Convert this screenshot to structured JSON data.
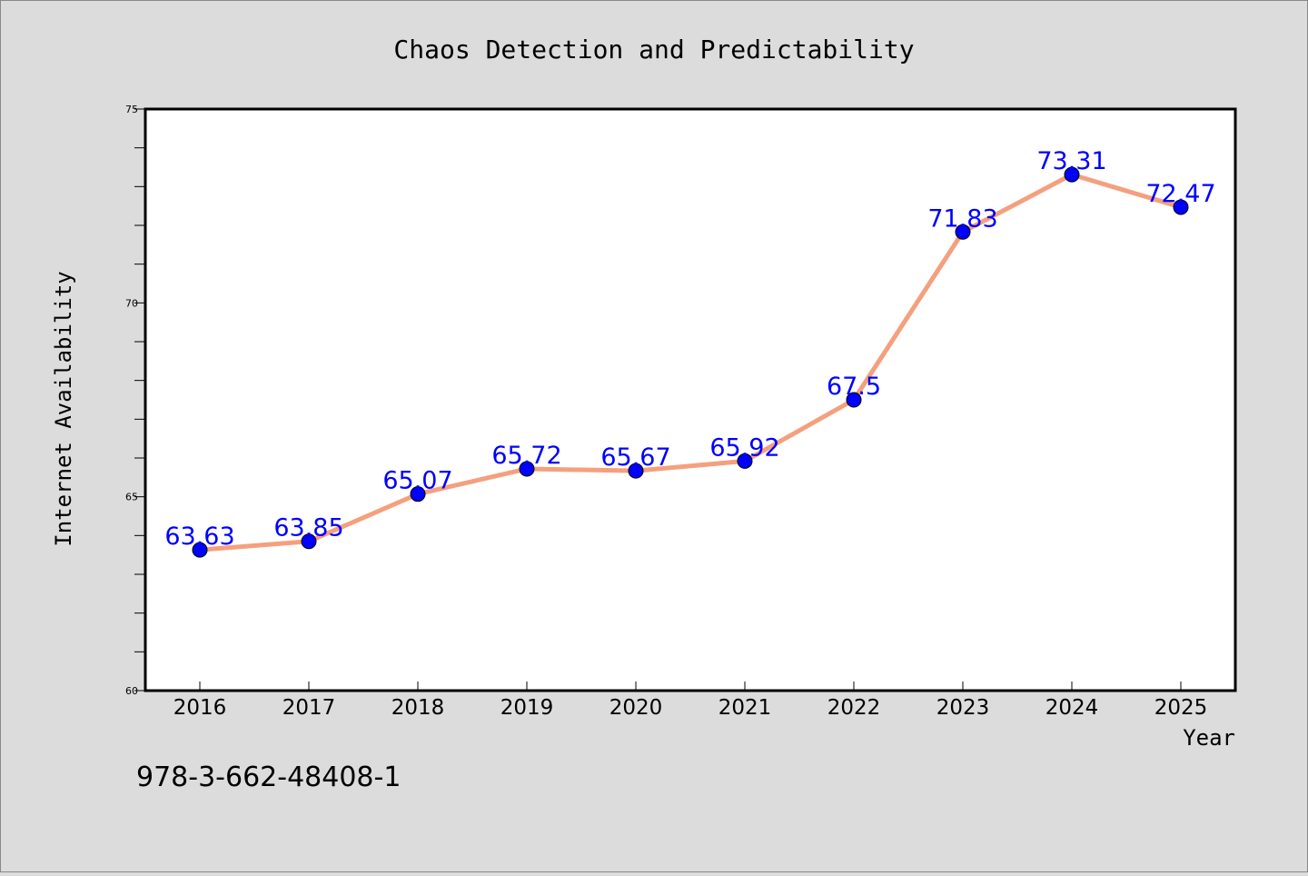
{
  "chart_data": {
    "type": "line",
    "title": "Chaos Detection and Predictability",
    "xlabel": "Year",
    "ylabel": "Internet Availability",
    "categories": [
      "2016",
      "2017",
      "2018",
      "2019",
      "2020",
      "2021",
      "2022",
      "2023",
      "2024",
      "2025"
    ],
    "values": [
      63.63,
      63.85,
      65.07,
      65.72,
      65.67,
      65.92,
      67.5,
      71.83,
      73.31,
      72.47
    ],
    "data_labels": [
      "63.63",
      "63.85",
      "65.07",
      "65.72",
      "65.67",
      "65.92",
      "67.5",
      "71.83",
      "73.31",
      "72.47"
    ],
    "ylim": [
      60,
      75
    ],
    "yticks": [
      "60",
      "65",
      "70",
      "75"
    ],
    "grid": false,
    "line_color": "#f4a07e",
    "marker_color": "#0000ff",
    "label_color": "#0000ff"
  },
  "footer": {
    "isbn": "978-3-662-48408-1"
  }
}
